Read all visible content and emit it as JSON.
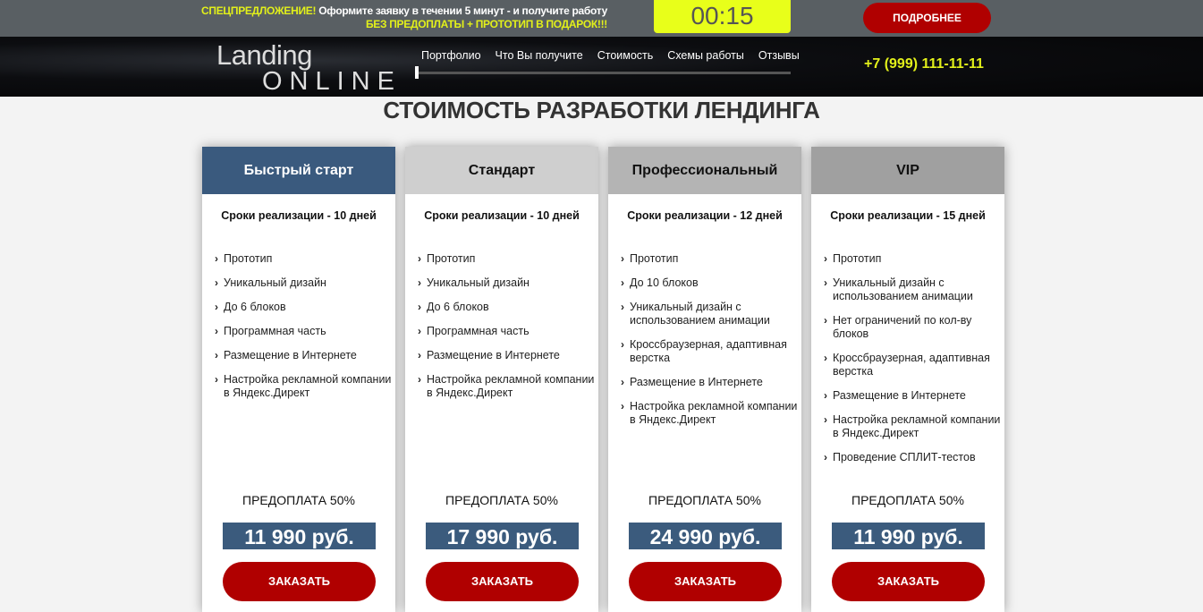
{
  "topbar": {
    "promo_highlight": "СПЕЦПРЕДЛОЖЕНИЕ!",
    "promo_text": " Оформите заявку в течении 5 минут - и получите работу",
    "promo_line2": "БЕЗ ПРЕДОПЛАТЫ + ПРОТОТИП В ПОДАРОК!!!",
    "timer": "00:15",
    "more_label": "ПОДРОБНЕЕ"
  },
  "header": {
    "logo_line1": "Landing",
    "logo_line2": "ONLINE",
    "nav": [
      "Портфолио",
      "Что Вы получите",
      "Стоимость",
      "Схемы работы",
      "Отзывы"
    ],
    "phone": "+7 (999) 111-11-11"
  },
  "main": {
    "title": "СТОИМОСТЬ РАЗРАБОТКИ ЛЕНДИНГА",
    "plans": [
      {
        "name": "Быстрый старт",
        "header_color": "#3a5a7e",
        "header_text_color": "#ffffff",
        "term": "Сроки реализации - 10 дней",
        "features": [
          "Прототип",
          "Уникальный дизайн",
          "До 6 блоков",
          "Программная часть",
          "Размещение в Интернете",
          "Настройка рекламной компании в Яндекс.Директ"
        ],
        "prepay": "ПРЕДОПЛАТА 50%",
        "price": "11 990 руб.",
        "order_label": "ЗАКАЗАТЬ"
      },
      {
        "name": "Стандарт",
        "header_color": "#cfcfcf",
        "header_text_color": "#111111",
        "term": "Сроки реализации - 10 дней",
        "features": [
          "Прототип",
          "Уникальный дизайн",
          "До 6 блоков",
          "Программная часть",
          "Размещение в Интернете",
          "Настройка рекламной компании в Яндекс.Директ"
        ],
        "prepay": "ПРЕДОПЛАТА 50%",
        "price": "17 990 руб.",
        "order_label": "ЗАКАЗАТЬ"
      },
      {
        "name": "Профессиональный",
        "header_color": "#b4b4b4",
        "header_text_color": "#111111",
        "term": "Сроки реализации - 12 дней",
        "features": [
          "Прототип",
          "До 10 блоков",
          "Уникальный дизайн с использованием анимации",
          "Кроссбраузерная, адаптивная верстка",
          "Размещение в Интернете",
          "Настройка рекламной компании в Яндекс.Директ"
        ],
        "prepay": "ПРЕДОПЛАТА 50%",
        "price": "24 990 руб.",
        "order_label": "ЗАКАЗАТЬ"
      },
      {
        "name": "VIP",
        "header_color": "#a0a0a0",
        "header_text_color": "#111111",
        "term": "Сроки реализации - 15 дней",
        "features": [
          "Прототип",
          "Уникальный дизайн с использованием анимации",
          "Нет ограничений по кол-ву блоков",
          "Кроссбраузерная, адаптивная верстка",
          "Размещение в Интернете",
          "Настройка рекламной компании в Яндекс.Директ",
          "Проведение СПЛИТ-тестов"
        ],
        "prepay": "ПРЕДОПЛАТА 50%",
        "price": "11 990 руб.",
        "order_label": "ЗАКАЗАТЬ"
      }
    ]
  }
}
